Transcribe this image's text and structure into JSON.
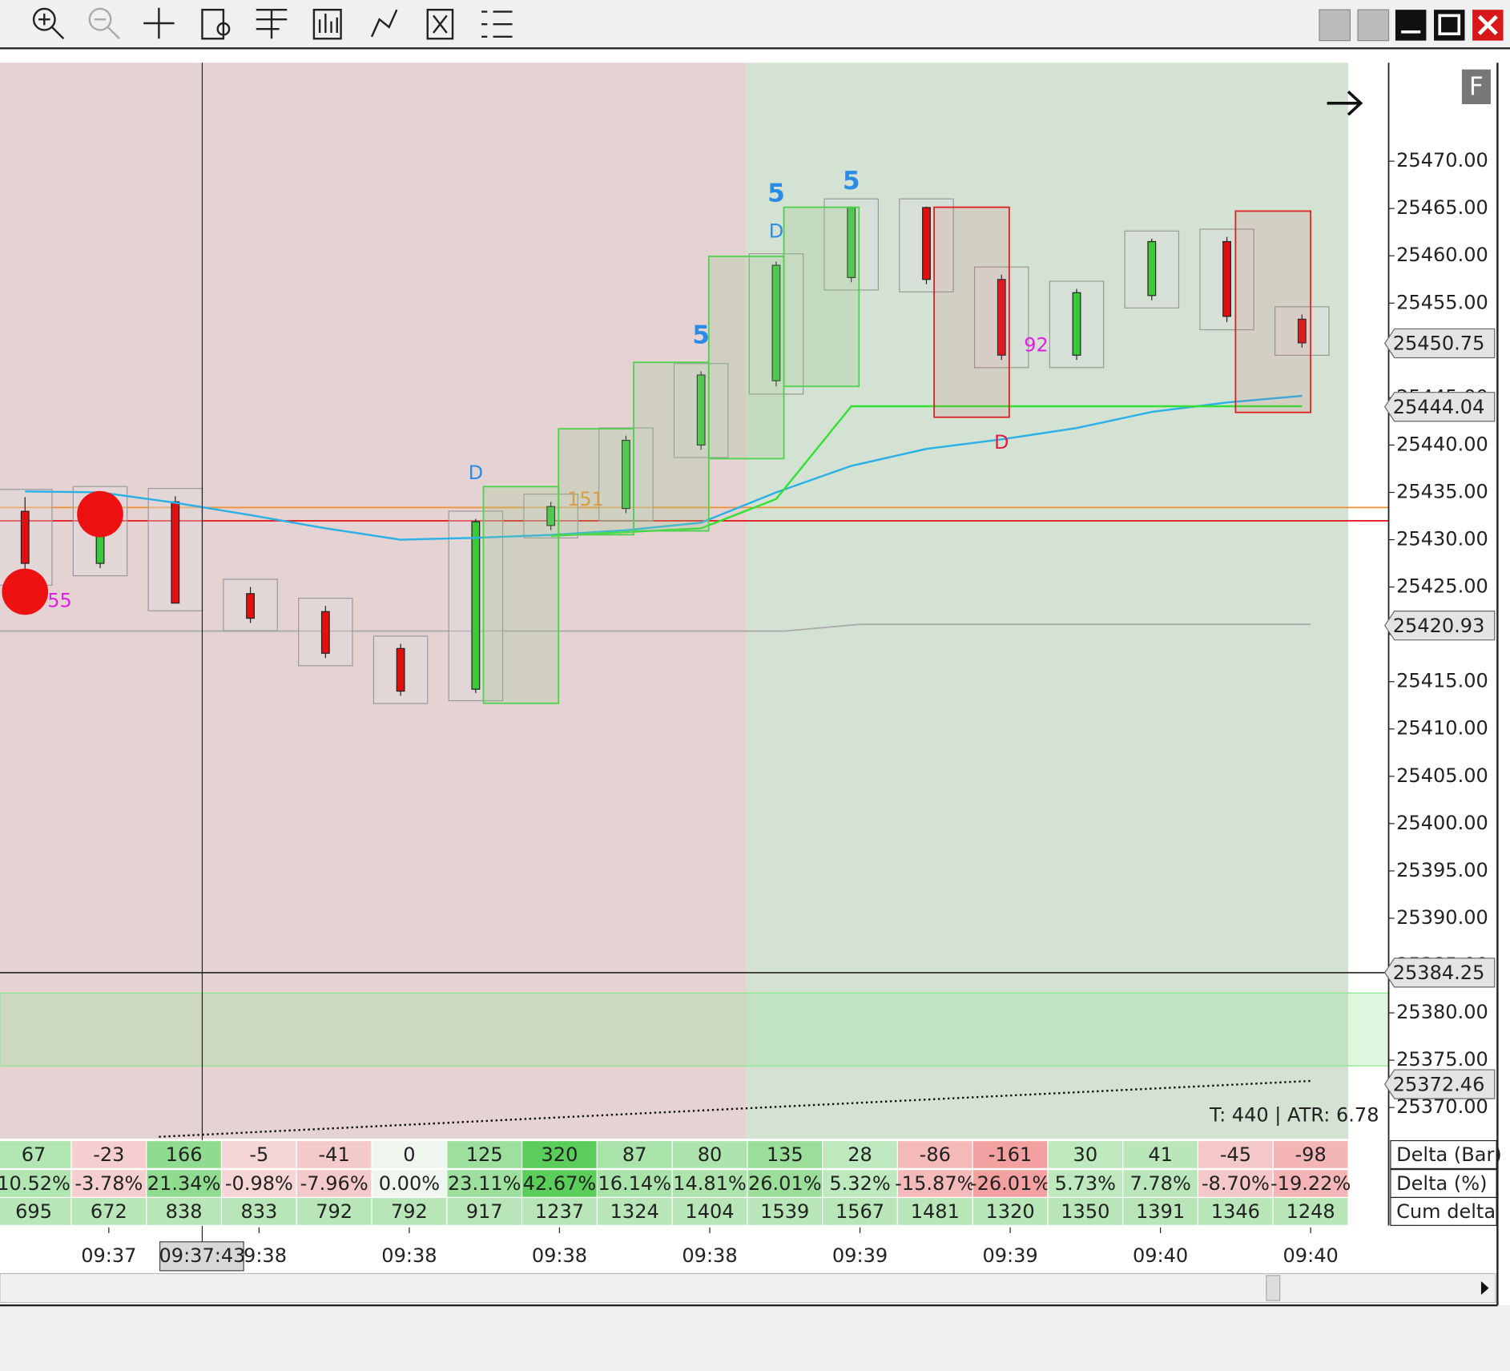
{
  "chart_data": {
    "type": "candlestick",
    "ylim": [
      25366.7,
      25480.4
    ],
    "yticks": [
      {
        "value": 25370,
        "label": "25370.00"
      },
      {
        "value": 25375,
        "label": "25375.00"
      },
      {
        "value": 25380,
        "label": "25380.00"
      },
      {
        "value": 25385,
        "label": "25385.00"
      },
      {
        "value": 25390,
        "label": "25390.00"
      },
      {
        "value": 25395,
        "label": "25395.00"
      },
      {
        "value": 25400,
        "label": "25400.00"
      },
      {
        "value": 25405,
        "label": "25405.00"
      },
      {
        "value": 25410,
        "label": "25410.00"
      },
      {
        "value": 25415,
        "label": "25415.00"
      },
      {
        "value": 25420,
        "label": "25420.00"
      },
      {
        "value": 25425,
        "label": "25425.00"
      },
      {
        "value": 25430,
        "label": "25430.00"
      },
      {
        "value": 25435,
        "label": "25435.00"
      },
      {
        "value": 25440,
        "label": "25440.00"
      },
      {
        "value": 25445,
        "label": "25445.00"
      },
      {
        "value": 25450,
        "label": "25450.00"
      },
      {
        "value": 25455,
        "label": "25455.00"
      },
      {
        "value": 25460,
        "label": "25460.00"
      },
      {
        "value": 25465,
        "label": "25465.00"
      },
      {
        "value": 25470,
        "label": "25470.00"
      }
    ],
    "candles": [
      {
        "open": 25433.0,
        "high": 25434.5,
        "low": 25426.0,
        "close": 25427.5
      },
      {
        "open": 25427.5,
        "high": 25434.8,
        "low": 25427.0,
        "close": 25434.3
      },
      {
        "open": 25434.0,
        "high": 25434.6,
        "low": 25423.3,
        "close": 25423.3
      },
      {
        "open": 25424.3,
        "high": 25425.0,
        "low": 25421.2,
        "close": 25421.7
      },
      {
        "open": 25422.4,
        "high": 25423.0,
        "low": 25417.5,
        "close": 25418.0
      },
      {
        "open": 25418.5,
        "high": 25419.0,
        "low": 25413.5,
        "close": 25414.0
      },
      {
        "open": 25414.2,
        "high": 25432.2,
        "low": 25413.8,
        "close": 25431.9
      },
      {
        "open": 25431.5,
        "high": 25434.0,
        "low": 25431.0,
        "close": 25433.5
      },
      {
        "open": 25433.3,
        "high": 25441.0,
        "low": 25432.8,
        "close": 25440.5
      },
      {
        "open": 25440.0,
        "high": 25447.8,
        "low": 25439.5,
        "close": 25447.4
      },
      {
        "open": 25446.8,
        "high": 25459.4,
        "low": 25446.2,
        "close": 25459.0
      },
      {
        "open": 25457.7,
        "high": 25465.2,
        "low": 25457.2,
        "close": 25465.1
      },
      {
        "open": 25465.1,
        "high": 25465.2,
        "low": 25457.0,
        "close": 25457.5
      },
      {
        "open": 25457.5,
        "high": 25458.0,
        "low": 25449.0,
        "close": 25449.5
      },
      {
        "open": 25449.5,
        "high": 25456.5,
        "low": 25449.0,
        "close": 25456.1
      },
      {
        "open": 25455.8,
        "high": 25461.8,
        "low": 25455.3,
        "close": 25461.5
      },
      {
        "open": 25461.5,
        "high": 25462.0,
        "low": 25453.0,
        "close": 25453.6
      },
      {
        "open": 25453.3,
        "high": 25453.8,
        "low": 25450.3,
        "close": 25450.8
      }
    ],
    "up_color": "#3cc83c",
    "down_color": "#e01010",
    "series": [
      {
        "color": "#29b0e6",
        "values": [
          25435.1,
          25435.0,
          25433.9,
          25432.6,
          25431.2,
          25430.0,
          25430.2,
          25430.5,
          25431.0,
          25431.8,
          25435.0,
          25437.8,
          25439.6,
          25440.6,
          25441.8,
          25443.5,
          25444.5,
          25445.2
        ]
      },
      {
        "color": "#33e033",
        "values": [
          null,
          null,
          null,
          null,
          null,
          null,
          null,
          25430.4,
          25430.8,
          25431.2,
          25434.3,
          25444.1,
          25444.1,
          25444.1,
          25444.1,
          25444.1,
          25444.1,
          25444.1
        ]
      }
    ],
    "levels": [
      {
        "price": 25432.0,
        "color": "#e02020"
      },
      {
        "price": 25433.4,
        "color": "#f09030"
      },
      {
        "price": 25384.25,
        "color": "#333333"
      }
    ],
    "zone": [
      25374.4,
      25382.1
    ],
    "price_markers": [
      25450.75,
      25444.04,
      25420.93,
      25384.25,
      25372.46
    ],
    "big_trades": [
      {
        "candle": 0,
        "price": 25424.5
      },
      {
        "candle": 1,
        "price": 25432.7
      }
    ],
    "signals": [
      {
        "text": "D",
        "candle": 6,
        "price": 25437.0,
        "color": "#2b8ce8"
      },
      {
        "text": "5",
        "candle": 9,
        "price": 25451.5,
        "color": "#2b8ce8"
      },
      {
        "text": "5",
        "candle": 10,
        "price": 25466.5,
        "color": "#2b8ce8"
      },
      {
        "text": "D",
        "candle": 10,
        "price": 25462.5,
        "color": "#2b8ce8"
      },
      {
        "text": "5",
        "candle": 11,
        "price": 25467.8,
        "color": "#2b8ce8"
      },
      {
        "text": "D",
        "candle": 13,
        "price": 25440.2,
        "color": "#e02040"
      },
      {
        "text": "151",
        "candle": 7,
        "price": 25434.2,
        "color": "#f09030"
      },
      {
        "text": "92",
        "candle": 13,
        "price": 25450.5,
        "color": "#e020e0"
      },
      {
        "text": "55",
        "candle": 0,
        "price": 25423.5,
        "color": "#e020e0"
      }
    ],
    "info": "T: 440 | ATR: 6.78"
  },
  "delta_table": {
    "row_labels": [
      "Delta (Bar)",
      "Delta (%)",
      "Cum delta"
    ],
    "rows": [
      [
        67,
        -23,
        166,
        -5,
        -41,
        0,
        125,
        320,
        87,
        80,
        135,
        28,
        -86,
        -161,
        30,
        41,
        -45,
        -98
      ],
      [
        "10.52%",
        "-3.78%",
        "21.34%",
        "-0.98%",
        "-7.96%",
        "0.00%",
        "23.11%",
        "42.67%",
        "16.14%",
        "14.81%",
        "26.01%",
        "5.32%",
        "-15.87%",
        "-26.01%",
        "5.73%",
        "7.78%",
        "-8.70%",
        "-19.22%"
      ],
      [
        695,
        672,
        838,
        833,
        792,
        792,
        917,
        1237,
        1324,
        1404,
        1539,
        1567,
        1481,
        1320,
        1350,
        1391,
        1346,
        1248
      ]
    ]
  },
  "time_axis": {
    "labels": [
      "09:37",
      "09:38",
      "09:38",
      "09:38",
      "09:38",
      "09:39",
      "09:39",
      "09:40",
      "09:40"
    ],
    "cursor": "09:37:43"
  },
  "corner_button": "F"
}
